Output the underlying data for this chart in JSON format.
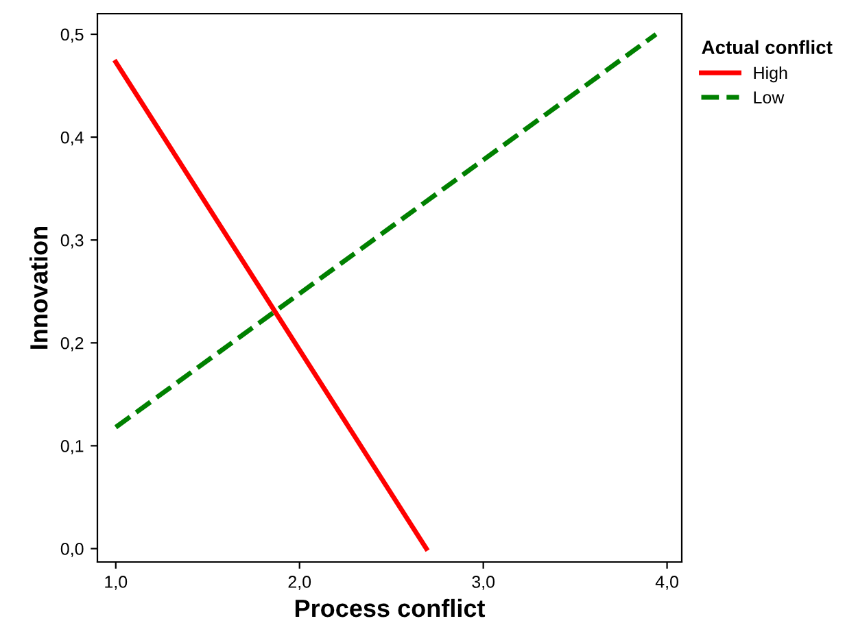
{
  "chart_data": {
    "type": "line",
    "xlabel": "Process conflict",
    "ylabel": "Innovation",
    "legend_title": "Actual conflict",
    "legend": "top right",
    "grid": false,
    "marker": "none",
    "xlim": [
      0.9,
      4.08
    ],
    "ylim": [
      -0.013,
      0.52
    ],
    "xticks": [
      {
        "value": 1,
        "label": "1,0"
      },
      {
        "value": 2,
        "label": "2,0"
      },
      {
        "value": 3,
        "label": "3,0"
      },
      {
        "value": 4,
        "label": "4,0"
      }
    ],
    "yticks": [
      {
        "value": 0,
        "label": "0,0"
      },
      {
        "value": 0.1,
        "label": "0,1"
      },
      {
        "value": 0.2,
        "label": "0,2"
      },
      {
        "value": 0.3,
        "label": "0,3"
      },
      {
        "value": 0.4,
        "label": "0,4"
      },
      {
        "value": 0.5,
        "label": "0,5"
      }
    ],
    "series": [
      {
        "name": "High",
        "color": "#ff0000",
        "line_style": "solid",
        "x": [
          1.0,
          2.69
        ],
        "values": [
          0.473,
          0.0
        ]
      },
      {
        "name": "Low",
        "color": "#008000",
        "line_style": "dashed",
        "x": [
          1.0,
          3.94
        ],
        "values": [
          0.118,
          0.5
        ]
      }
    ]
  }
}
